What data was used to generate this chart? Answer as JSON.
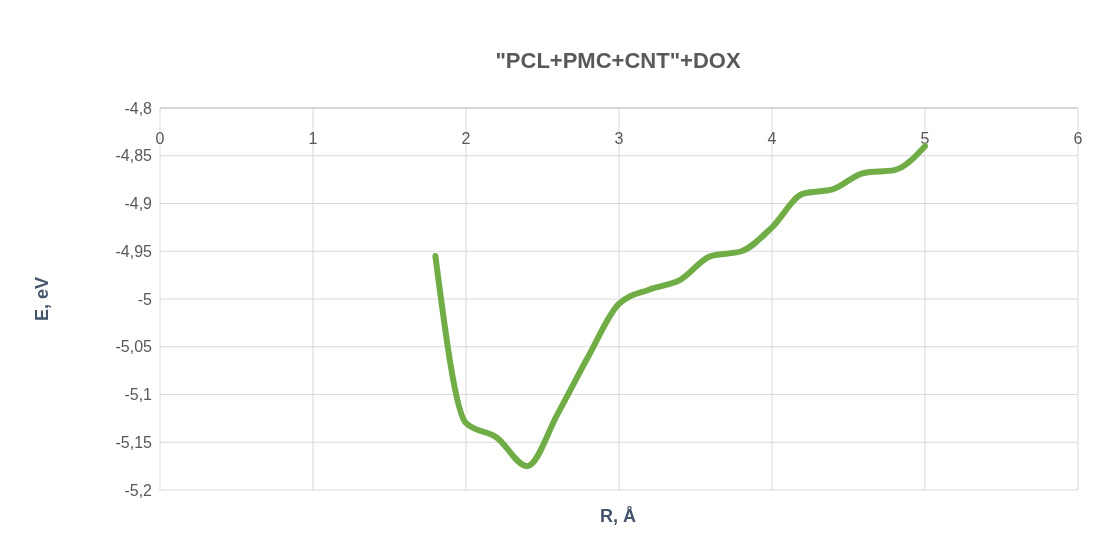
{
  "chart_data": {
    "type": "line",
    "title": "\"PCL+PMC+CNT\"+DOX",
    "xlabel": "R, Å",
    "ylabel": "E, eV",
    "x": [
      1.8,
      2.0,
      2.2,
      2.4,
      2.6,
      2.8,
      3.0,
      3.2,
      3.4,
      3.6,
      3.8,
      4.0,
      4.2,
      4.4,
      4.6,
      4.8,
      5.0
    ],
    "series": [
      {
        "color": "#70ad47",
        "values": [
          -4.955,
          -5.13,
          -5.145,
          -5.175,
          -5.12,
          -5.06,
          -5.005,
          -4.99,
          -4.98,
          -4.955,
          -4.95,
          -4.925,
          -4.89,
          -4.885,
          -4.868,
          -4.865,
          -4.84
        ]
      }
    ],
    "xlim": [
      0,
      6
    ],
    "xticks": [
      0,
      1,
      2,
      3,
      4,
      5,
      6
    ],
    "ylim": [
      -5.2,
      -4.8
    ],
    "yticks": [
      {
        "value": -4.8,
        "label": "-4,8"
      },
      {
        "value": -4.85,
        "label": "-4,85"
      },
      {
        "value": -4.9,
        "label": "-4,9"
      },
      {
        "value": -4.95,
        "label": "-4,95"
      },
      {
        "value": -5,
        "label": "-5"
      },
      {
        "value": -5.05,
        "label": "-5,05"
      },
      {
        "value": -5.1,
        "label": "-5,1"
      },
      {
        "value": -5.15,
        "label": "-5,15"
      },
      {
        "value": -5.2,
        "label": "-5,2"
      }
    ],
    "grid": true
  }
}
